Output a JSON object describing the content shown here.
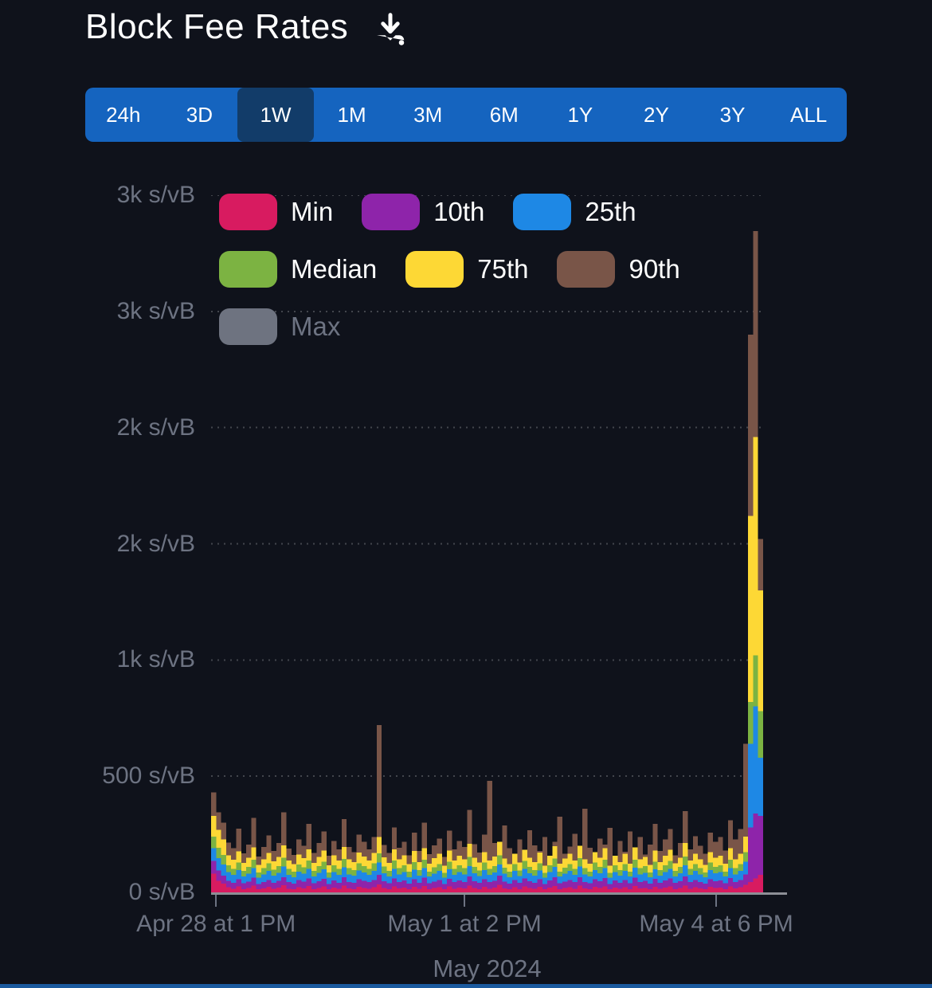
{
  "header": {
    "title": "Block Fee Rates"
  },
  "time_selector": {
    "options": [
      "24h",
      "3D",
      "1W",
      "1M",
      "3M",
      "6M",
      "1Y",
      "2Y",
      "3Y",
      "ALL"
    ],
    "selected": "1W"
  },
  "legend": {
    "items": [
      {
        "label": "Min",
        "color": "#D81B60",
        "disabled": false
      },
      {
        "label": "10th",
        "color": "#8E24AA",
        "disabled": false
      },
      {
        "label": "25th",
        "color": "#1E88E5",
        "disabled": false
      },
      {
        "label": "Median",
        "color": "#7CB342",
        "disabled": false
      },
      {
        "label": "75th",
        "color": "#FDD835",
        "disabled": false
      },
      {
        "label": "90th",
        "color": "#795548",
        "disabled": false
      },
      {
        "label": "Max",
        "color": "#6E7380",
        "disabled": true
      }
    ]
  },
  "chart_data": {
    "type": "bar",
    "title": "Block Fee Rates",
    "unit": "s/vB",
    "ylim": [
      0,
      3000
    ],
    "grid": "dotted-horizontal",
    "legend_position": "top-left-inside",
    "y_ticks": [
      {
        "value": 3000,
        "label": "3k s/vB"
      },
      {
        "value": 2500,
        "label": "3k s/vB"
      },
      {
        "value": 2000,
        "label": "2k s/vB"
      },
      {
        "value": 1500,
        "label": "2k s/vB"
      },
      {
        "value": 1000,
        "label": "1k s/vB"
      },
      {
        "value": 500,
        "label": "500 s/vB"
      },
      {
        "value": 0,
        "label": "0 s/vB"
      }
    ],
    "x_ticks": [
      {
        "pos": 0.009,
        "label": "Apr 28 at 1 PM"
      },
      {
        "pos": 0.459,
        "label": "May 1 at 2 PM"
      },
      {
        "pos": 0.915,
        "label": "May 4 at 6 PM"
      }
    ],
    "x_axis_title": "May 2024",
    "series": [
      {
        "name": "Min",
        "color": "#D81B60",
        "values": [
          80,
          50,
          38,
          22,
          16,
          26,
          14,
          19,
          29,
          13,
          18,
          24,
          15,
          21,
          31,
          16,
          13,
          23,
          18,
          28,
          14,
          19,
          26,
          13,
          21,
          16,
          29,
          18,
          14,
          24,
          19,
          16,
          22,
          35,
          19,
          14,
          26,
          18,
          21,
          13,
          24,
          16,
          27,
          14,
          19,
          22,
          13,
          26,
          16,
          21,
          18,
          29,
          19,
          14,
          24,
          16,
          21,
          32,
          18,
          13,
          22,
          14,
          26,
          19,
          16,
          24,
          13,
          21,
          27,
          14,
          19,
          22,
          16,
          29,
          18,
          14,
          24,
          19,
          26,
          13,
          21,
          16,
          22,
          14,
          27,
          18,
          19,
          13,
          24,
          16,
          21,
          26,
          14,
          19,
          29,
          16,
          22,
          18,
          13,
          24,
          19,
          21,
          14,
          26,
          18,
          22,
          32,
          45,
          60,
          75
        ]
      },
      {
        "name": "10th",
        "color": "#8E24AA",
        "values": [
          135,
          95,
          72,
          50,
          42,
          57,
          39,
          47,
          63,
          36,
          45,
          54,
          41,
          50,
          66,
          44,
          38,
          53,
          47,
          60,
          39,
          48,
          59,
          36,
          51,
          42,
          65,
          45,
          41,
          56,
          50,
          44,
          54,
          75,
          48,
          39,
          60,
          45,
          51,
          38,
          57,
          42,
          63,
          39,
          47,
          54,
          36,
          59,
          44,
          51,
          45,
          68,
          48,
          41,
          57,
          44,
          50,
          72,
          47,
          38,
          54,
          41,
          60,
          48,
          42,
          56,
          36,
          51,
          65,
          39,
          47,
          54,
          44,
          66,
          45,
          39,
          57,
          48,
          62,
          36,
          51,
          42,
          54,
          39,
          63,
          45,
          50,
          38,
          59,
          42,
          51,
          60,
          41,
          48,
          69,
          44,
          54,
          45,
          38,
          57,
          48,
          51,
          39,
          62,
          45,
          54,
          78,
          280,
          340,
          330
        ]
      },
      {
        "name": "25th",
        "color": "#1E88E5",
        "values": [
          190,
          148,
          120,
          87,
          75,
          96,
          69,
          81,
          105,
          63,
          78,
          93,
          72,
          84,
          111,
          75,
          66,
          90,
          81,
          102,
          69,
          84,
          99,
          63,
          87,
          75,
          108,
          78,
          72,
          95,
          86,
          75,
          93,
          128,
          83,
          69,
          102,
          78,
          87,
          66,
          98,
          72,
          105,
          68,
          81,
          92,
          63,
          99,
          75,
          87,
          78,
          114,
          83,
          71,
          96,
          75,
          86,
          120,
          80,
          66,
          92,
          71,
          102,
          83,
          72,
          95,
          63,
          87,
          110,
          68,
          80,
          92,
          75,
          111,
          78,
          68,
          96,
          83,
          105,
          63,
          87,
          72,
          92,
          68,
          107,
          78,
          84,
          65,
          99,
          72,
          87,
          102,
          69,
          83,
          117,
          75,
          92,
          78,
          65,
          96,
          83,
          87,
          68,
          105,
          78,
          92,
          132,
          640,
          800,
          580
        ]
      },
      {
        "name": "Median",
        "color": "#7CB342",
        "values": [
          240,
          192,
          162,
          117,
          102,
          129,
          93,
          110,
          141,
          86,
          105,
          125,
          98,
          113,
          149,
          101,
          89,
          120,
          108,
          137,
          93,
          113,
          132,
          86,
          117,
          101,
          144,
          105,
          96,
          126,
          114,
          101,
          125,
          168,
          111,
          93,
          137,
          105,
          117,
          89,
          131,
          96,
          140,
          90,
          108,
          122,
          84,
          132,
          101,
          116,
          105,
          152,
          110,
          95,
          128,
          101,
          114,
          159,
          107,
          89,
          122,
          95,
          135,
          110,
          96,
          126,
          84,
          116,
          146,
          90,
          107,
          122,
          101,
          147,
          105,
          90,
          128,
          110,
          140,
          84,
          116,
          96,
          122,
          90,
          141,
          105,
          113,
          86,
          132,
          96,
          116,
          135,
          92,
          110,
          155,
          101,
          122,
          105,
          86,
          128,
          110,
          116,
          90,
          140,
          105,
          122,
          174,
          820,
          1020,
          780
        ]
      },
      {
        "name": "75th",
        "color": "#FDD835",
        "values": [
          330,
          270,
          228,
          160,
          140,
          176,
          127,
          150,
          193,
          118,
          143,
          170,
          133,
          153,
          203,
          138,
          121,
          163,
          147,
          186,
          127,
          153,
          180,
          117,
          160,
          138,
          196,
          143,
          131,
          172,
          155,
          138,
          170,
          238,
          151,
          127,
          186,
          143,
          160,
          121,
          178,
          131,
          191,
          123,
          147,
          166,
          115,
          180,
          138,
          158,
          143,
          209,
          150,
          128,
          174,
          138,
          155,
          217,
          145,
          121,
          166,
          128,
          184,
          150,
          131,
          172,
          115,
          158,
          199,
          123,
          145,
          166,
          138,
          201,
          143,
          123,
          174,
          150,
          191,
          115,
          158,
          131,
          166,
          123,
          193,
          143,
          153,
          118,
          180,
          131,
          158,
          184,
          126,
          150,
          212,
          138,
          166,
          143,
          118,
          174,
          150,
          158,
          123,
          191,
          143,
          166,
          240,
          1620,
          1960,
          1300
        ]
      },
      {
        "name": "90th",
        "color": "#795548",
        "values": [
          430,
          345,
          300,
          215,
          190,
          275,
          168,
          205,
          320,
          155,
          195,
          245,
          178,
          212,
          345,
          188,
          162,
          228,
          200,
          295,
          170,
          212,
          262,
          158,
          222,
          185,
          315,
          195,
          174,
          248,
          218,
          185,
          238,
          720,
          204,
          170,
          280,
          192,
          218,
          160,
          258,
          178,
          300,
          165,
          202,
          232,
          152,
          265,
          185,
          222,
          195,
          355,
          208,
          172,
          248,
          480,
          212,
          163,
          288,
          190,
          158,
          228,
          172,
          268,
          202,
          178,
          238,
          155,
          218,
          325,
          166,
          198,
          252,
          180,
          360,
          192,
          160,
          232,
          205,
          278,
          158,
          222,
          175,
          262,
          188,
          238,
          163,
          205,
          295,
          178,
          228,
          272,
          160,
          212,
          350,
          185,
          242,
          200,
          166,
          258,
          218,
          238,
          180,
          310,
          228,
          272,
          640,
          2400,
          2845,
          1520
        ]
      },
      {
        "name": "Max",
        "color": "#6E7380",
        "visible": false,
        "values": []
      }
    ]
  }
}
